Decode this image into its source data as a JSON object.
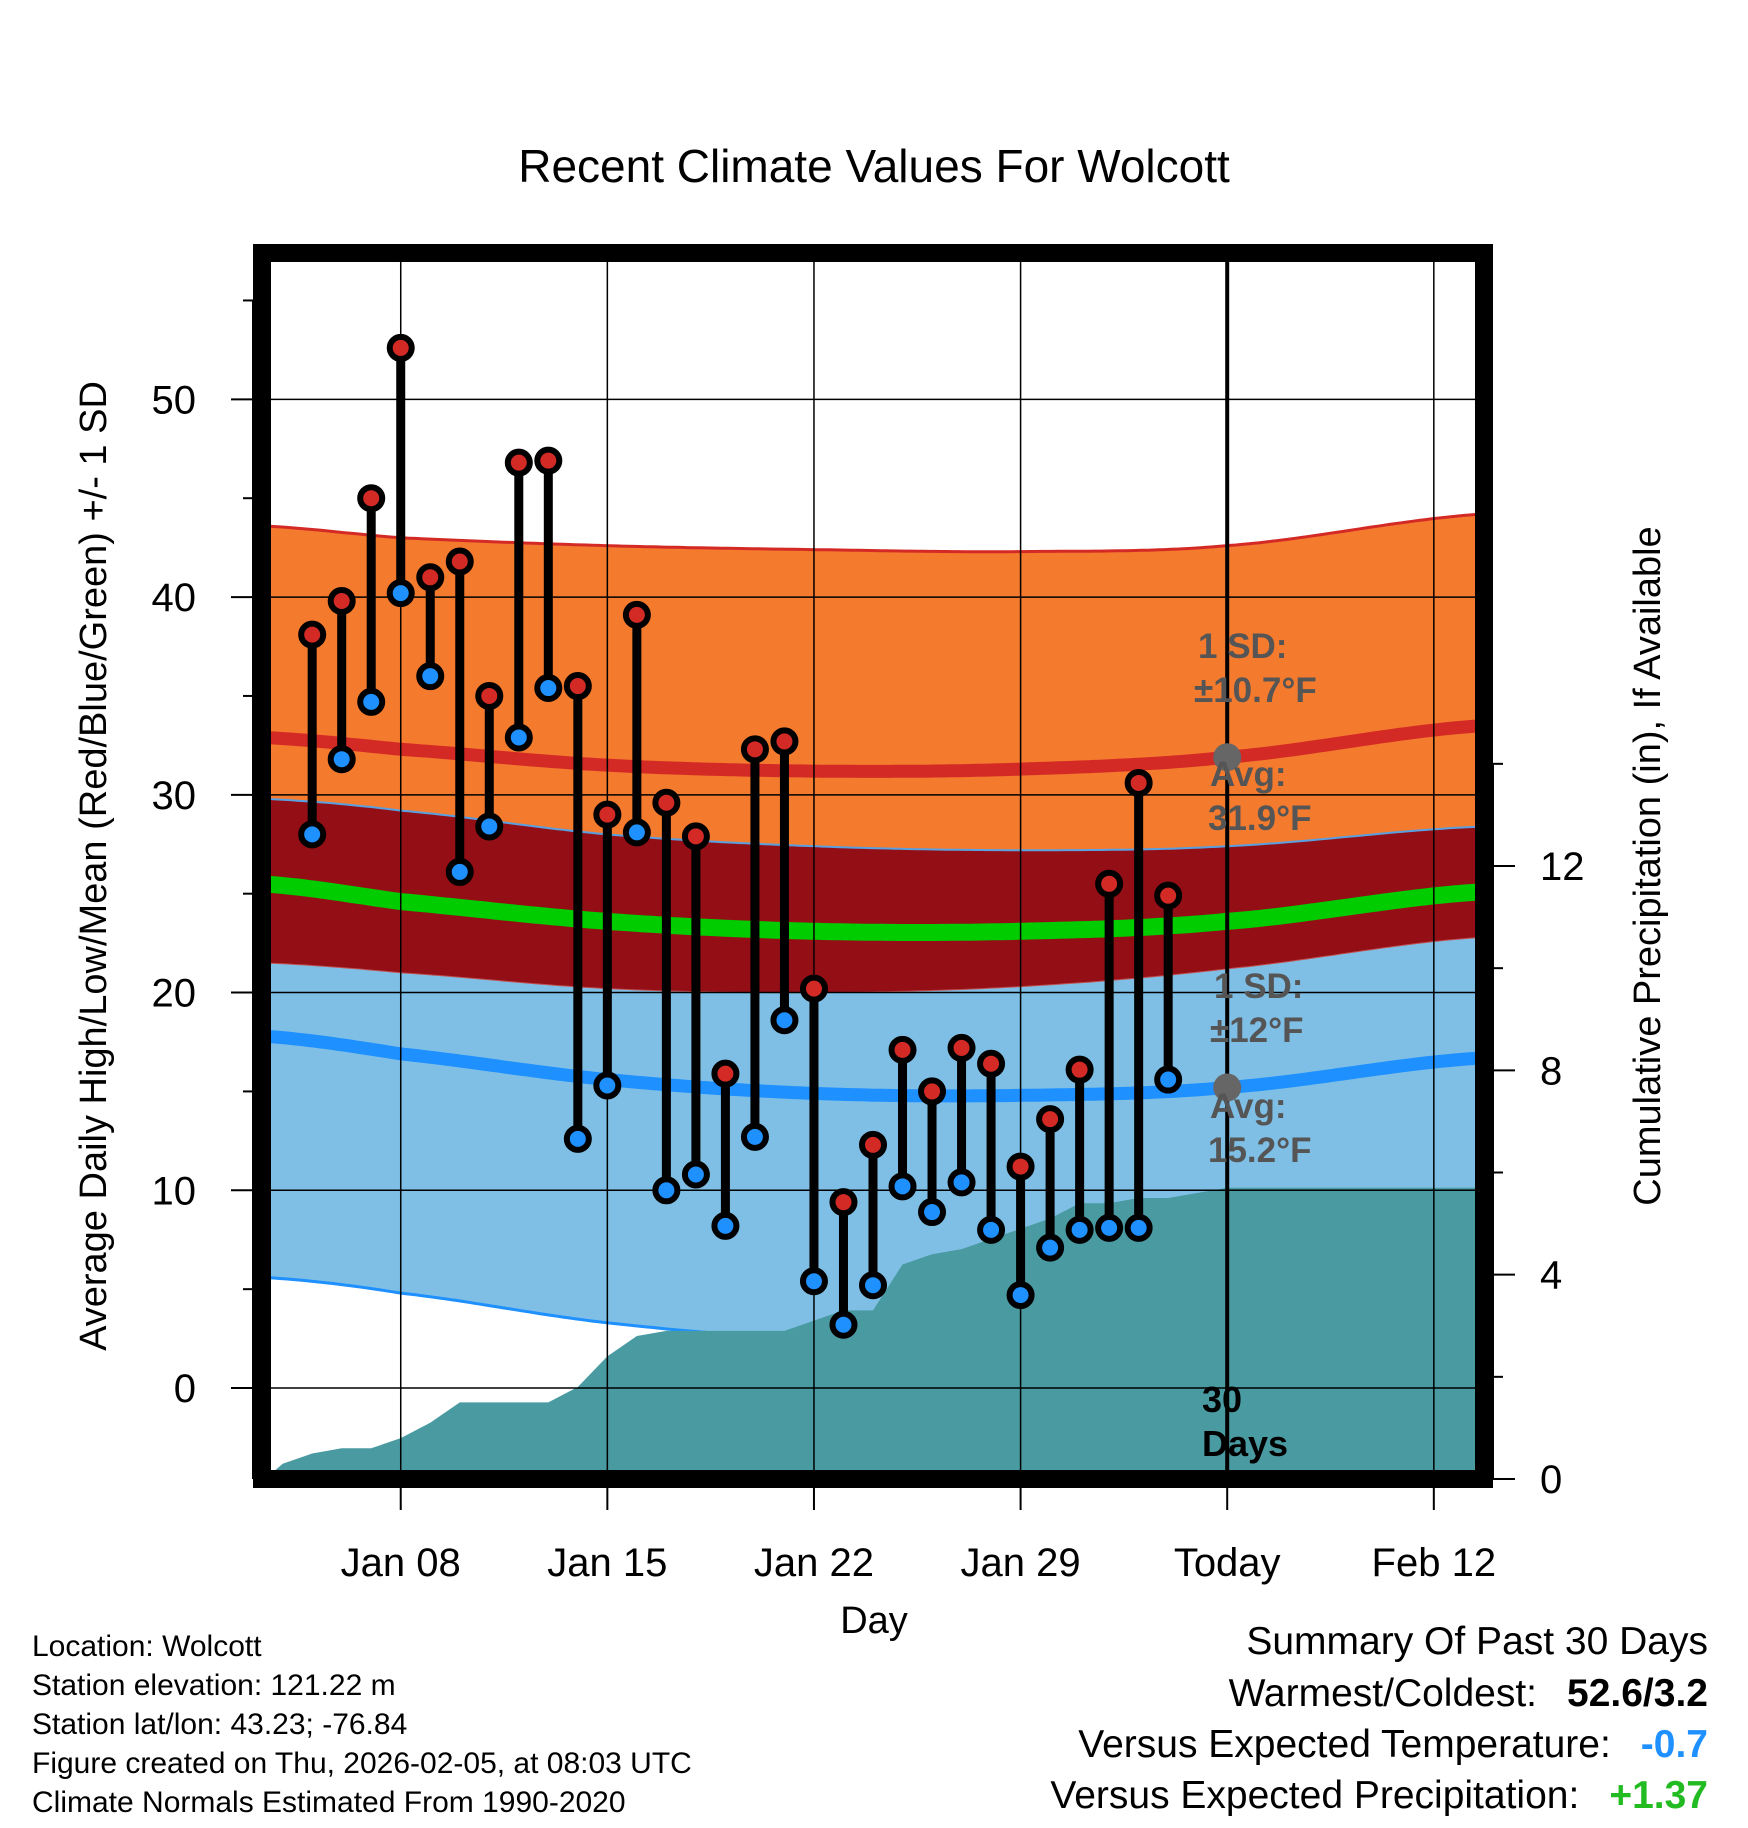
{
  "chart_data": {
    "type": "temperature-range-with-precipitation",
    "title": "Recent Climate Values For Wolcott",
    "xlabel": "Day",
    "ylabel": "Average Daily High/Low/Mean (Red/Blue/Green) +/- 1 SD",
    "y2label": "Cumulative Precipitation (in), If Available",
    "ylim": [
      -4.6,
      57.4
    ],
    "y2lim": [
      0,
      24
    ],
    "xlim": [
      3.3,
      44.7
    ],
    "yticks": [
      0,
      10,
      20,
      30,
      40,
      50
    ],
    "y2ticks": [
      0,
      4,
      8,
      12
    ],
    "xticks": [
      {
        "day": 8,
        "label": "Jan 08"
      },
      {
        "day": 15,
        "label": "Jan 15"
      },
      {
        "day": 22,
        "label": "Jan 22"
      },
      {
        "day": 29,
        "label": "Jan 29"
      },
      {
        "day": 36,
        "label": "Today"
      },
      {
        "day": 43,
        "label": "Feb 12"
      }
    ],
    "today_day": 36,
    "period_label": [
      "30",
      "Days"
    ],
    "days": [
      5,
      6,
      7,
      8,
      9,
      10,
      11,
      12,
      13,
      14,
      15,
      16,
      17,
      18,
      19,
      20,
      21,
      22,
      23,
      24,
      25,
      26,
      27,
      28,
      29,
      30,
      31,
      32,
      33,
      34,
      35
    ],
    "highs": [
      38.1,
      39.8,
      45.0,
      52.6,
      41.0,
      41.8,
      35.0,
      46.8,
      46.9,
      35.5,
      29.0,
      39.1,
      29.6,
      27.9,
      15.9,
      32.3,
      32.7,
      20.2,
      9.4,
      12.3,
      17.1,
      15.0,
      17.2,
      16.4,
      11.2,
      13.6,
      16.1,
      25.5,
      30.6,
      24.9,
      null
    ],
    "lows": [
      28.0,
      31.8,
      34.7,
      40.2,
      36.0,
      26.1,
      28.4,
      32.9,
      35.4,
      12.6,
      15.3,
      28.1,
      10.0,
      10.8,
      8.2,
      12.7,
      18.6,
      5.4,
      3.2,
      5.2,
      10.2,
      8.9,
      10.4,
      8.0,
      4.7,
      7.1,
      8.0,
      8.1,
      8.1,
      15.6,
      null
    ],
    "normals": {
      "day": [
        3.3,
        8,
        15,
        22,
        29,
        36,
        44.7
      ],
      "high_mean": [
        32.9,
        32.3,
        31.5,
        31.2,
        31.3,
        31.9,
        33.5
      ],
      "high_upper": [
        43.6,
        43.0,
        42.6,
        42.4,
        42.3,
        42.6,
        44.2
      ],
      "high_lower": [
        29.8,
        29.2,
        28.0,
        27.4,
        27.2,
        27.4,
        28.4
      ],
      "mean": [
        25.5,
        24.6,
        23.6,
        23.1,
        23.1,
        23.6,
        25.1
      ],
      "mean_upper": [
        29.8,
        29.2,
        28.0,
        27.4,
        27.2,
        27.4,
        28.4
      ],
      "mean_lower": [
        21.5,
        21.0,
        20.2,
        20.0,
        20.3,
        21.2,
        22.8
      ],
      "low_mean": [
        17.8,
        16.9,
        15.6,
        14.9,
        14.8,
        15.2,
        16.7
      ],
      "low_upper": [
        21.5,
        21.0,
        20.2,
        20.0,
        20.3,
        21.2,
        22.8
      ],
      "low_lower": [
        5.6,
        4.8,
        3.3,
        2.5,
        2.7,
        3.2,
        4.5
      ]
    },
    "precip": {
      "day": [
        3.4,
        4.0,
        5.0,
        6.0,
        7.0,
        8.0,
        9.0,
        10.0,
        11.0,
        12.0,
        13.0,
        14.0,
        15.0,
        16.0,
        17.0,
        18.0,
        19.0,
        20.0,
        21.0,
        22.0,
        23.0,
        24.0,
        25.0,
        26.0,
        27.0,
        28.0,
        29.0,
        30.0,
        31.0,
        32.0,
        33.0,
        34.0,
        35.0,
        36.0,
        44.7
      ],
      "cumulative_in": [
        0.0,
        0.3,
        0.5,
        0.6,
        0.6,
        0.8,
        1.1,
        1.5,
        1.5,
        1.5,
        1.5,
        1.8,
        2.4,
        2.8,
        2.9,
        2.9,
        2.9,
        2.9,
        2.9,
        3.1,
        3.3,
        3.3,
        4.2,
        4.4,
        4.5,
        4.7,
        4.9,
        5.1,
        5.4,
        5.4,
        5.5,
        5.5,
        5.6,
        5.7,
        5.7
      ]
    },
    "annotations": {
      "high_sd_label": [
        "1 SD:",
        "±10.7°F"
      ],
      "high_avg_label": [
        "Avg:",
        "31.9°F"
      ],
      "low_sd_label": [
        "1 SD:",
        "±12°F"
      ],
      "low_avg_label": [
        "Avg:",
        "15.2°F"
      ],
      "high_avg_value": 31.9,
      "low_avg_value": 15.2
    },
    "colors": {
      "high_band": "#f47a2e",
      "high_line": "#d42a26",
      "mean_band": "#930f15",
      "mean_line": "#00cc00",
      "low_band": "#7fbfe5",
      "low_line": "#1e90ff",
      "precip": "#4a9aa2",
      "high_dot": "#d42a26",
      "low_dot": "#1e90ff",
      "marker": "#666666"
    }
  },
  "info": {
    "location": "Location: Wolcott",
    "elevation": "Station elevation: 121.22 m",
    "latlon": "Station lat/lon: 43.23; -76.84",
    "created": "Figure created on Thu, 2026-02-05, at 08:03 UTC",
    "normals": "Climate Normals Estimated From 1990-2020"
  },
  "summary": {
    "title": "Summary Of Past 30 Days",
    "warm_cold_label": "Warmest/Coldest:",
    "warm_cold_value": "52.6/3.2",
    "temp_label": "Versus Expected Temperature:",
    "temp_value": "-0.7",
    "temp_color": "#1e90ff",
    "precip_label": "Versus Expected Precipitation:",
    "precip_value": "+1.37",
    "precip_color": "#22bb22"
  }
}
